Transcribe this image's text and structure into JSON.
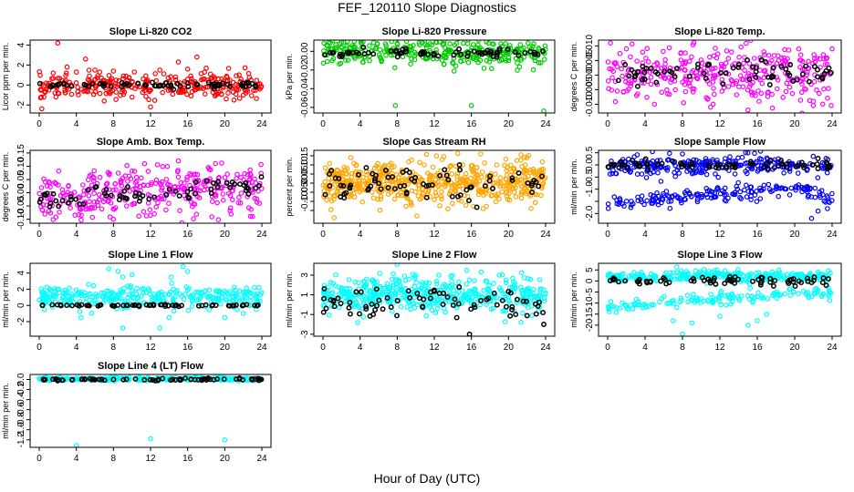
{
  "figure": {
    "title": "FEF_120110  Slope Diagnostics",
    "xlabel": "Hour of Day (UTC)"
  },
  "colors": {
    "red": "#ff0000",
    "green": "#00cc00",
    "magenta": "#ff00ff",
    "orange": "#ffa500",
    "blue": "#0000ff",
    "cyan": "#00ffff",
    "black": "#000000"
  },
  "chart_data": [
    {
      "type": "scatter",
      "title": "Slope Li-820 CO2",
      "ylabel": "Licor ppm per min.",
      "ylim": [
        -2.8,
        4.5
      ],
      "yticks": [
        -2,
        0,
        2,
        4
      ],
      "yticklabels": [
        "-2",
        "0",
        "2",
        "4"
      ],
      "xlim": [
        0,
        24
      ],
      "xticks": [
        0,
        4,
        8,
        12,
        16,
        20,
        24
      ],
      "xticklabels": [
        "0",
        "4",
        "8",
        "12",
        "16",
        "20",
        "24"
      ],
      "series": [
        {
          "color": "red",
          "center": [
            [
              0,
              -0.3
            ],
            [
              8,
              0
            ],
            [
              16,
              0
            ],
            [
              24,
              0
            ]
          ],
          "spread": 0.6,
          "n": 300,
          "outliers": [
            [
              0.5,
              -1.2
            ],
            [
              1.5,
              1.2
            ],
            [
              2.0,
              4.2
            ],
            [
              3.0,
              1.8
            ],
            [
              4.0,
              1.3
            ],
            [
              5.0,
              2.6
            ],
            [
              6.0,
              1.5
            ],
            [
              7.0,
              -1.6
            ],
            [
              8.0,
              1.4
            ],
            [
              10.0,
              -1.2
            ],
            [
              12.0,
              -2.2
            ],
            [
              13.0,
              1.5
            ],
            [
              15.0,
              2.3
            ],
            [
              16.0,
              1.6
            ],
            [
              17.0,
              2.8
            ],
            [
              18.0,
              1.7
            ],
            [
              21.0,
              -1.5
            ],
            [
              22.0,
              -1.0
            ]
          ]
        },
        {
          "color": "black",
          "center": [
            [
              0,
              0
            ],
            [
              24,
              0
            ]
          ],
          "spread": 0.15,
          "n": 70,
          "outliers": []
        }
      ]
    },
    {
      "type": "scatter",
      "title": "Slope Li-820 Pressure",
      "ylabel": "kPa per min.",
      "ylim": [
        -0.066,
        0.012
      ],
      "yticks": [
        -0.06,
        -0.04,
        -0.02,
        0
      ],
      "yticklabels": [
        "-0.06",
        "-0.04",
        "-0.02",
        "0.00"
      ],
      "xlim": [
        0,
        24
      ],
      "xticks": [
        0,
        4,
        8,
        12,
        16,
        20,
        24
      ],
      "xticklabels": [
        "0",
        "4",
        "8",
        "12",
        "16",
        "20",
        "24"
      ],
      "series": [
        {
          "color": "green",
          "center": [
            [
              0,
              0
            ],
            [
              24,
              -0.002
            ]
          ],
          "spread": 0.007,
          "n": 340,
          "outliers": [
            [
              0.8,
              0.009
            ],
            [
              2.0,
              0.01
            ],
            [
              7.8,
              -0.058
            ],
            [
              16.0,
              -0.058
            ],
            [
              23.8,
              -0.064
            ],
            [
              1.0,
              -0.01
            ]
          ]
        },
        {
          "color": "black",
          "center": [
            [
              0,
              -0.002
            ],
            [
              24,
              -0.002
            ]
          ],
          "spread": 0.002,
          "n": 70,
          "outliers": []
        }
      ]
    },
    {
      "type": "scatter",
      "title": "Slope Li-820 Temp.",
      "ylabel": "degrees C per min.",
      "ylim": [
        -0.013,
        0.012
      ],
      "yticks": [
        -0.01,
        -0.005,
        0,
        0.005,
        0.01
      ],
      "yticklabels": [
        "-0.010",
        "-0.005",
        "0.000",
        "0.005",
        "0.010"
      ],
      "xlim": [
        0,
        24
      ],
      "xticks": [
        0,
        4,
        8,
        12,
        16,
        20,
        24
      ],
      "xticklabels": [
        "0",
        "4",
        "8",
        "12",
        "16",
        "20",
        "24"
      ],
      "series": [
        {
          "color": "magenta",
          "center": [
            [
              0,
              0
            ],
            [
              24,
              0
            ]
          ],
          "spread": 0.005,
          "n": 340,
          "outliers": [
            [
              0.3,
              0.011
            ],
            [
              2.0,
              0.009
            ],
            [
              5.0,
              -0.01
            ],
            [
              11.0,
              -0.011
            ],
            [
              15.0,
              -0.012
            ],
            [
              22.0,
              -0.009
            ],
            [
              24.0,
              0.009
            ]
          ]
        },
        {
          "color": "black",
          "center": [
            [
              0,
              0
            ],
            [
              24,
              0.001
            ]
          ],
          "spread": 0.002,
          "n": 70,
          "outliers": []
        }
      ]
    },
    {
      "type": "scatter",
      "title": "Slope Amb. Box Temp.",
      "ylabel": "degrees C per min.",
      "ylim": [
        -0.115,
        0.16
      ],
      "yticks": [
        -0.1,
        -0.05,
        0,
        0.05,
        0.1,
        0.15
      ],
      "yticklabels": [
        "-0.10",
        "-0.05",
        "0.00",
        "0.05",
        "0.10",
        "0.15"
      ],
      "xlim": [
        0,
        24
      ],
      "xticks": [
        0,
        4,
        8,
        12,
        16,
        20,
        24
      ],
      "xticklabels": [
        "0",
        "4",
        "8",
        "12",
        "16",
        "20",
        "24"
      ],
      "series": [
        {
          "color": "magenta",
          "center": [
            [
              0,
              -0.03
            ],
            [
              8,
              0
            ],
            [
              16,
              0.02
            ],
            [
              24,
              0.01
            ]
          ],
          "spread": 0.045,
          "n": 340,
          "outliers": [
            [
              15.0,
              0.12
            ],
            [
              19.0,
              0.11
            ],
            [
              8.0,
              -0.1
            ],
            [
              23.0,
              -0.09
            ]
          ]
        },
        {
          "color": "black",
          "center": [
            [
              0,
              -0.03
            ],
            [
              24,
              0.02
            ]
          ],
          "spread": 0.02,
          "n": 70,
          "outliers": []
        }
      ]
    },
    {
      "type": "scatter",
      "title": "Slope Gas Stream RH",
      "ylabel": "percent per min.",
      "ylim": [
        -0.22,
        0.18
      ],
      "yticks": [
        -0.15,
        -0.1,
        -0.05,
        0,
        0.05,
        0.1,
        0.15
      ],
      "yticklabels": [
        "",
        "-0.10",
        "-0.05",
        "0.00",
        "0.05",
        "0.10",
        "0.15"
      ],
      "xlim": [
        0,
        24
      ],
      "xticks": [
        0,
        4,
        8,
        12,
        16,
        20,
        24
      ],
      "xticklabels": [
        "0",
        "4",
        "8",
        "12",
        "16",
        "20",
        "24"
      ],
      "series": [
        {
          "color": "orange",
          "center": [
            [
              0,
              0
            ],
            [
              24,
              0
            ]
          ],
          "spread": 0.06,
          "n": 560,
          "outliers": [
            [
              1.2,
              -0.19
            ],
            [
              3.0,
              0.14
            ],
            [
              17.0,
              0.16
            ],
            [
              22.0,
              0.14
            ]
          ]
        },
        {
          "color": "black",
          "center": [
            [
              0,
              0
            ],
            [
              24,
              0
            ]
          ],
          "spread": 0.04,
          "n": 75,
          "outliers": []
        }
      ]
    },
    {
      "type": "scatter",
      "title": "Slope Sample Flow",
      "ylabel": "ml/min per min.",
      "ylim": [
        -2.4,
        0.6
      ],
      "yticks": [
        -2,
        -1.5,
        -1,
        -0.5,
        0,
        0.5
      ],
      "yticklabels": [
        "-2.0",
        "",
        "-1.0",
        "-0.5",
        "0.0",
        "0.5"
      ],
      "xlim": [
        0,
        24
      ],
      "xticks": [
        0,
        4,
        8,
        12,
        16,
        20,
        24
      ],
      "xticklabels": [
        "0",
        "4",
        "8",
        "12",
        "16",
        "20",
        "24"
      ],
      "series": [
        {
          "color": "blue",
          "center": [
            [
              0,
              0
            ],
            [
              24,
              0
            ]
          ],
          "spread": 0.2,
          "n": 260,
          "outliers": [
            [
              8,
              0.45
            ],
            [
              15,
              0.5
            ]
          ]
        },
        {
          "color": "blue",
          "center": [
            [
              0,
              -1.6
            ],
            [
              8,
              -1.35
            ],
            [
              16,
              -1.05
            ],
            [
              21,
              -0.9
            ],
            [
              24,
              -1.5
            ]
          ],
          "spread": 0.15,
          "n": 180,
          "outliers": [
            [
              21.8,
              -2.2
            ],
            [
              22.5,
              -1.9
            ],
            [
              23.5,
              -1.8
            ]
          ]
        },
        {
          "color": "black",
          "center": [
            [
              0,
              0
            ],
            [
              24,
              0
            ]
          ],
          "spread": 0.1,
          "n": 70,
          "outliers": []
        }
      ]
    },
    {
      "type": "scatter",
      "title": "Slope Line 1 Flow",
      "ylabel": "ml/min per min.",
      "ylim": [
        -3.8,
        5.2
      ],
      "yticks": [
        -2,
        0,
        2,
        4
      ],
      "yticklabels": [
        "-2",
        "0",
        "2",
        "4"
      ],
      "xlim": [
        0,
        24
      ],
      "xticks": [
        0,
        4,
        8,
        12,
        16,
        20,
        24
      ],
      "xticklabels": [
        "0",
        "4",
        "8",
        "12",
        "16",
        "20",
        "24"
      ],
      "series": [
        {
          "color": "cyan",
          "center": [
            [
              0,
              1
            ],
            [
              24,
              1
            ]
          ],
          "spread": 0.7,
          "n": 320,
          "outliers": [
            [
              7.5,
              4.5
            ],
            [
              8.5,
              4.2
            ],
            [
              9.0,
              3.5
            ],
            [
              10.0,
              3.8
            ],
            [
              15.5,
              4.8
            ],
            [
              16.0,
              4.2
            ],
            [
              4.5,
              -1.5
            ],
            [
              9.0,
              -2.8
            ],
            [
              13.0,
              -2.8
            ],
            [
              14.0,
              -1.5
            ],
            [
              20.0,
              -1.5
            ],
            [
              22.0,
              -1.0
            ]
          ]
        },
        {
          "color": "black",
          "center": [
            [
              0,
              0
            ],
            [
              24,
              0
            ]
          ],
          "spread": 0.05,
          "n": 70,
          "outliers": []
        }
      ]
    },
    {
      "type": "scatter",
      "title": "Slope Line 2 Flow",
      "ylabel": "ml/min per min.",
      "ylim": [
        -3.2,
        4.2
      ],
      "yticks": [
        -3,
        -1,
        1,
        3
      ],
      "yticklabels": [
        "-3",
        "-1",
        "1",
        "3"
      ],
      "xlim": [
        0,
        24
      ],
      "xticks": [
        0,
        4,
        8,
        12,
        16,
        20,
        24
      ],
      "xticklabels": [
        "0",
        "4",
        "8",
        "12",
        "16",
        "20",
        "24"
      ],
      "series": [
        {
          "color": "cyan",
          "center": [
            [
              0,
              1
            ],
            [
              24,
              1
            ]
          ],
          "spread": 0.9,
          "n": 480,
          "outliers": [
            [
              8.0,
              4.1
            ],
            [
              12.5,
              3.0
            ],
            [
              15.5,
              3.5
            ],
            [
              19.0,
              3.0
            ]
          ]
        },
        {
          "color": "black",
          "center": [
            [
              0,
              0.3
            ],
            [
              24,
              0.3
            ]
          ],
          "spread": 0.8,
          "n": 75,
          "outliers": [
            [
              15.8,
              -3.0
            ],
            [
              23.8,
              -2.0
            ]
          ]
        }
      ]
    },
    {
      "type": "scatter",
      "title": "Slope Line 3 Flow",
      "ylabel": "ml/min per min.",
      "ylim": [
        -25,
        8
      ],
      "yticks": [
        -20,
        -15,
        -10,
        -5,
        0,
        5
      ],
      "yticklabels": [
        "-20",
        "-15",
        "-10",
        "-5",
        "0",
        "5"
      ],
      "xlim": [
        0,
        24
      ],
      "xticks": [
        0,
        4,
        8,
        12,
        16,
        20,
        24
      ],
      "xticklabels": [
        "0",
        "4",
        "8",
        "12",
        "16",
        "20",
        "24"
      ],
      "series": [
        {
          "color": "cyan",
          "center": [
            [
              0,
              2
            ],
            [
              24,
              2
            ]
          ],
          "spread": 1.3,
          "n": 300,
          "outliers": []
        },
        {
          "color": "cyan",
          "center": [
            [
              0,
              -12
            ],
            [
              8,
              -9
            ],
            [
              12,
              -8
            ],
            [
              16,
              -7
            ],
            [
              20,
              -5
            ],
            [
              24,
              -6
            ]
          ],
          "spread": 1.3,
          "n": 150,
          "outliers": [
            [
              7,
              -18
            ],
            [
              8,
              -24
            ],
            [
              9,
              -19
            ],
            [
              12,
              -16
            ],
            [
              15,
              -20
            ],
            [
              16,
              -18
            ],
            [
              17,
              -15
            ]
          ]
        },
        {
          "color": "black",
          "center": [
            [
              0,
              0
            ],
            [
              24,
              0
            ]
          ],
          "spread": 1.0,
          "n": 70,
          "outliers": []
        }
      ]
    },
    {
      "type": "scatter",
      "title": "Slope Line 4 (LT) Flow",
      "ylabel": "ml/min per min.",
      "ylim": [
        -1.35,
        0.1
      ],
      "yticks": [
        -1.2,
        -1,
        -0.8,
        -0.6,
        -0.4,
        -0.2,
        0
      ],
      "yticklabels": [
        "-1.2",
        "-1.0",
        "-0.8",
        "-0.6",
        "-0.4",
        "-0.2",
        "0.0"
      ],
      "xlim": [
        0,
        24
      ],
      "xticks": [
        0,
        4,
        8,
        12,
        16,
        20,
        24
      ],
      "xticklabels": [
        "0",
        "4",
        "8",
        "12",
        "16",
        "20",
        "24"
      ],
      "series": [
        {
          "color": "cyan",
          "center": [
            [
              0,
              0.01
            ],
            [
              24,
              0.01
            ]
          ],
          "spread": 0.015,
          "n": 300,
          "outliers": [
            [
              4.0,
              -1.31
            ],
            [
              12.0,
              -1.18
            ],
            [
              20.0,
              -1.2
            ]
          ]
        },
        {
          "color": "black",
          "center": [
            [
              0,
              0
            ],
            [
              24,
              0
            ]
          ],
          "spread": 0.01,
          "n": 70,
          "outliers": []
        }
      ]
    }
  ]
}
